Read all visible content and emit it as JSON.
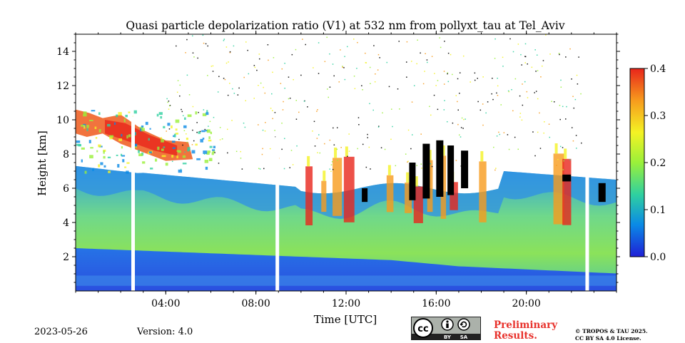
{
  "chart_data": {
    "type": "heatmap",
    "title": "Quasi particle depolarization ratio (V1) at 532 nm from pollyxt_tau at Tel_Aviv",
    "xlabel": "Time [UTC]",
    "ylabel": "Height [km]",
    "xlim": [
      0,
      24
    ],
    "ylim": [
      0,
      15
    ],
    "x_ticks": [
      {
        "value": 4,
        "label": "04:00"
      },
      {
        "value": 8,
        "label": "08:00"
      },
      {
        "value": 12,
        "label": "12:00"
      },
      {
        "value": 16,
        "label": "16:00"
      },
      {
        "value": 20,
        "label": "20:00"
      }
    ],
    "y_ticks": [
      {
        "value": 2,
        "label": "2"
      },
      {
        "value": 4,
        "label": "4"
      },
      {
        "value": 6,
        "label": "6"
      },
      {
        "value": 8,
        "label": "8"
      },
      {
        "value": 10,
        "label": "10"
      },
      {
        "value": 12,
        "label": "12"
      },
      {
        "value": 14,
        "label": "14"
      }
    ],
    "colorbar": {
      "min": 0.0,
      "max": 0.4,
      "ticks": [
        {
          "value": 0.0,
          "label": "0.0"
        },
        {
          "value": 0.1,
          "label": "0.1"
        },
        {
          "value": 0.2,
          "label": "0.2"
        },
        {
          "value": 0.3,
          "label": "0.3"
        },
        {
          "value": 0.4,
          "label": "0.4"
        }
      ],
      "colormap": [
        "#1f1fd6",
        "#0a8ae6",
        "#2fd0a0",
        "#9af03a",
        "#f4f224",
        "#f79b1d",
        "#e8251b"
      ]
    },
    "data_gaps_hours": [
      2.55,
      8.95,
      22.7
    ],
    "layers": [
      {
        "layer": "near-surface",
        "time": [
          0,
          24
        ],
        "height_km": [
          0.2,
          0.9
        ],
        "value": 0.02
      },
      {
        "layer": "boundary-layer",
        "time": [
          0,
          24
        ],
        "height_km": [
          0.9,
          2.6
        ],
        "value": 0.04
      },
      {
        "layer": "dust",
        "time": [
          0,
          24
        ],
        "height_km": [
          2.6,
          6.5
        ],
        "value": 0.18
      },
      {
        "layer": "elevated-dust",
        "time": [
          0,
          6
        ],
        "height_km": [
          6.5,
          10.5
        ],
        "value": 0.35
      },
      {
        "layer": "cirrus",
        "time": [
          10,
          17
        ],
        "height_km": [
          4.0,
          8.5
        ],
        "value": 0.33
      }
    ]
  },
  "footer": {
    "date": "2023-05-26",
    "version": "Version: 4.0",
    "preliminary_line1": "Preliminary",
    "preliminary_line2": "Results.",
    "copyright_line1": "© TROPOS & TAU 2025.",
    "copyright_line2": "CC BY SA 4.0 License.",
    "license_badge": {
      "by": "BY",
      "sa": "SA",
      "icon": "creative-commons-icon"
    }
  }
}
